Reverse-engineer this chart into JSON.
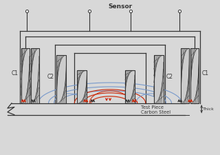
{
  "bg_color": "#d8d8d8",
  "line_color": "#333333",
  "red_color": "#cc2200",
  "blue_color": "#7799cc",
  "title": "Sensor",
  "label_c1": "C1",
  "label_c2": "C2",
  "label_test": "Test Piece\nCarbon Steel",
  "label_thick": "Thick"
}
